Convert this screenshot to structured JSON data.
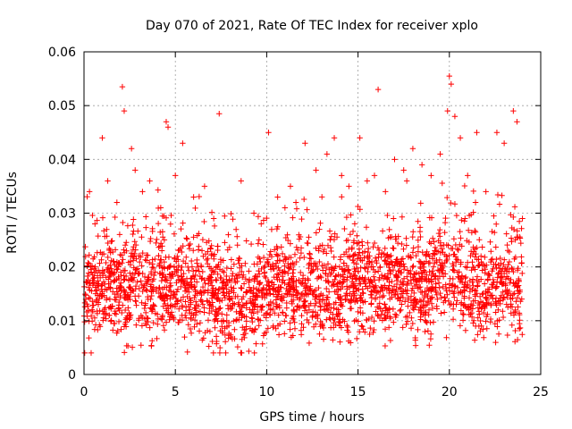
{
  "chart_data": {
    "type": "scatter",
    "title": "Day 070 of 2021, Rate Of TEC Index for receiver xplo",
    "xlabel": "GPS time / hours",
    "ylabel": "ROTI / TECUs",
    "xlim": [
      0,
      25
    ],
    "ylim": [
      0,
      0.06
    ],
    "x_ticks": [
      0,
      5,
      10,
      15,
      20,
      25
    ],
    "x_tick_labels": [
      "0",
      "5",
      "10",
      "15",
      "20",
      "25"
    ],
    "y_ticks": [
      0,
      0.01,
      0.02,
      0.03,
      0.04,
      0.05,
      0.06
    ],
    "y_tick_labels": [
      "0",
      "0.01",
      "0.02",
      "0.03",
      "0.04",
      "0.05",
      "0.06"
    ],
    "grid": true,
    "marker": "+",
    "marker_color": "#ff0000",
    "series": [
      {
        "name": "ROTI",
        "x": [
          0.3,
          0.6,
          1.0,
          1.3,
          1.8,
          2.1,
          2.2,
          2.6,
          2.8,
          3.2,
          3.6,
          4.2,
          4.5,
          4.6,
          5.0,
          5.4,
          6.0,
          6.6,
          7.1,
          7.4,
          7.9,
          8.6,
          9.3,
          9.7,
          10.1,
          10.6,
          11.0,
          11.3,
          11.6,
          12.1,
          12.7,
          13.3,
          13.7,
          14.1,
          14.5,
          15.1,
          15.5,
          15.9,
          16.1,
          16.5,
          17.0,
          17.5,
          18.0,
          18.5,
          19.0,
          19.5,
          19.9,
          20.0,
          20.1,
          20.3,
          20.6,
          21.0,
          21.5,
          22.0,
          22.6,
          23.0,
          23.5,
          23.7,
          24.0
        ],
        "y": [
          0.034,
          0.028,
          0.044,
          0.036,
          0.032,
          0.0535,
          0.049,
          0.042,
          0.038,
          0.034,
          0.036,
          0.031,
          0.047,
          0.046,
          0.037,
          0.043,
          0.033,
          0.035,
          0.029,
          0.0485,
          0.026,
          0.036,
          0.03,
          0.028,
          0.045,
          0.033,
          0.031,
          0.035,
          0.032,
          0.043,
          0.038,
          0.041,
          0.044,
          0.037,
          0.035,
          0.044,
          0.036,
          0.037,
          0.053,
          0.034,
          0.04,
          0.038,
          0.042,
          0.039,
          0.037,
          0.041,
          0.049,
          0.0555,
          0.054,
          0.048,
          0.044,
          0.037,
          0.045,
          0.034,
          0.045,
          0.043,
          0.049,
          0.047,
          0.029
        ]
      }
    ]
  }
}
